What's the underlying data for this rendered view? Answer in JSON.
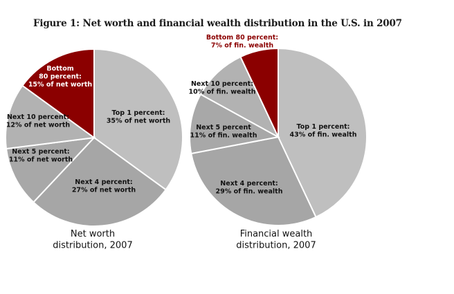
{
  "title": "Figure 1: Net worth and financial wealth distribution in the U.S. in 2007",
  "colors": {
    "dark_red": "#8b0000",
    "gray_a": "#bfbfbf",
    "gray_b": "#a6a6a6",
    "gray_c": "#b2b2b2",
    "gray_d": "#a0a0a0",
    "gray_e": "#a8a8a8"
  },
  "chart_data": [
    {
      "type": "pie",
      "title": "",
      "caption": [
        "Net worth",
        "distribution, 2007"
      ],
      "slices": [
        {
          "key": "top1",
          "value": 35,
          "label_lines": [
            "Top 1 percent:",
            "35% of net worth"
          ],
          "color": "#bfbfbf",
          "label_color": "#111111"
        },
        {
          "key": "next4",
          "value": 27,
          "label_lines": [
            "Next 4 percent:",
            "27% of net worth"
          ],
          "color": "#a6a6a6",
          "label_color": "#111111"
        },
        {
          "key": "next5",
          "value": 11,
          "label_lines": [
            "Next 5 percent:",
            "11% of net worth"
          ],
          "color": "#a8a8a8",
          "label_color": "#111111"
        },
        {
          "key": "next10",
          "value": 12,
          "label_lines": [
            "Next 10 percent:",
            "12% of net worth"
          ],
          "color": "#b2b2b2",
          "label_color": "#111111"
        },
        {
          "key": "bottom80",
          "value": 15,
          "label_lines": [
            "Bottom",
            "80 percent:",
            "15% of net worth"
          ],
          "color": "#8b0000",
          "label_color": "#ffffff"
        }
      ]
    },
    {
      "type": "pie",
      "title": "",
      "caption": [
        "Financial wealth",
        "distribution, 2007"
      ],
      "slices": [
        {
          "key": "top1",
          "value": 43,
          "label_lines": [
            "Top 1 percent:",
            "43% of fin. wealth"
          ],
          "color": "#bfbfbf",
          "label_color": "#111111"
        },
        {
          "key": "next4",
          "value": 29,
          "label_lines": [
            "Next 4 percent:",
            "29% of fin. wealth"
          ],
          "color": "#a6a6a6",
          "label_color": "#111111"
        },
        {
          "key": "next5",
          "value": 11,
          "label_lines": [
            "Next 5 percent",
            "11% of fin. wealth"
          ],
          "color": "#a8a8a8",
          "label_color": "#111111"
        },
        {
          "key": "next10",
          "value": 10,
          "label_lines": [
            "Next 10 percent:",
            "10% of fin. wealth"
          ],
          "color": "#b2b2b2",
          "label_color": "#111111"
        },
        {
          "key": "bottom80",
          "value": 7,
          "label_lines": [
            "Bottom 80 percent:",
            "7% of fin. wealth"
          ],
          "color": "#8b0000",
          "label_color": "#8b0000"
        }
      ]
    }
  ]
}
